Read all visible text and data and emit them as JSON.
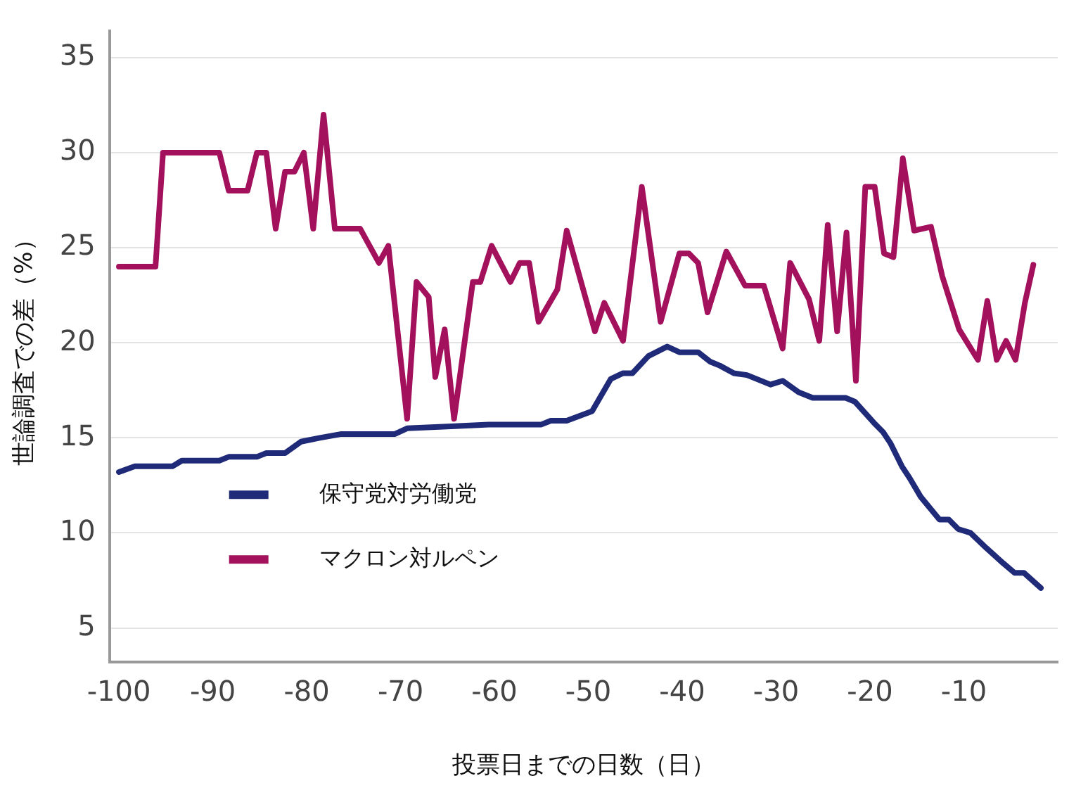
{
  "chart_data": {
    "type": "line",
    "xlabel": "投票日までの日数（日）",
    "ylabel": "世論調査での差（%）",
    "xlim": [
      -101,
      0
    ],
    "ylim": [
      3.2,
      36.4
    ],
    "xticks": [
      -100,
      -90,
      -80,
      -70,
      -60,
      -50,
      -40,
      -30,
      -20,
      -10
    ],
    "yticks": [
      5,
      10,
      15,
      20,
      25,
      30,
      35
    ],
    "grid": "y",
    "legend": "bottom left",
    "marker": "none",
    "line_style": "solid",
    "series": [
      {
        "name": "保守党対労働党",
        "color": "#1f2a78",
        "x": [
          -100,
          -98.3,
          -94.3,
          -93.3,
          -89.3,
          -88.3,
          -85.3,
          -84.3,
          -82.3,
          -80.6,
          -78.6,
          -76.3,
          -70.6,
          -69.3,
          -64.6,
          -60.6,
          -55,
          -54,
          -52.3,
          -49.6,
          -47.6,
          -46.3,
          -45.3,
          -43.6,
          -41.6,
          -40.3,
          -38.3,
          -37,
          -36,
          -34.5,
          -33.1,
          -30.6,
          -29.3,
          -27.6,
          -26.1,
          -22.6,
          -21.6,
          -19.6,
          -18.6,
          -17.8,
          -16.6,
          -15.8,
          -14.6,
          -12.6,
          -11.6,
          -10.6,
          -9.3,
          -7.6,
          -5.8,
          -4.6,
          -3.6,
          -1.8
        ],
        "values": [
          13.2,
          13.5,
          13.5,
          13.8,
          13.8,
          14.0,
          14.0,
          14.2,
          14.2,
          14.8,
          15.0,
          15.2,
          15.2,
          15.5,
          15.6,
          15.7,
          15.7,
          15.9,
          15.9,
          16.4,
          18.1,
          18.4,
          18.4,
          19.3,
          19.8,
          19.5,
          19.5,
          19.0,
          18.8,
          18.4,
          18.3,
          17.8,
          18.0,
          17.4,
          17.1,
          17.1,
          16.9,
          15.8,
          15.3,
          14.7,
          13.5,
          12.9,
          11.9,
          10.7,
          10.7,
          10.2,
          10.0,
          9.2,
          8.4,
          7.9,
          7.9,
          7.1
        ]
      },
      {
        "name": "マクロン対ルペン",
        "color": "#a3105c",
        "x": [
          -100,
          -96.1,
          -95.3,
          -89.3,
          -88.3,
          -86.3,
          -85.3,
          -84.3,
          -83.3,
          -82.3,
          -81.3,
          -80.3,
          -79.3,
          -78.2,
          -77,
          -74.3,
          -72.3,
          -71.3,
          -69.3,
          -68.3,
          -67,
          -66.3,
          -65.3,
          -64.3,
          -62.3,
          -61.5,
          -60.3,
          -58.3,
          -57.3,
          -56.3,
          -55.3,
          -53.3,
          -52.3,
          -49.3,
          -48.3,
          -46.3,
          -44.3,
          -42.3,
          -40.3,
          -39.3,
          -38.3,
          -37.3,
          -35.3,
          -33.3,
          -31.3,
          -29.3,
          -28.5,
          -26.5,
          -25.4,
          -24.5,
          -23.5,
          -22.5,
          -21.5,
          -20.5,
          -19.5,
          -18.5,
          -17.5,
          -16.5,
          -15.3,
          -13.5,
          -12.3,
          -10.5,
          -8.5,
          -7.5,
          -6.5,
          -5.5,
          -4.5,
          -3.5,
          -2.6
        ],
        "values": [
          24,
          24,
          30,
          30,
          28,
          28,
          30,
          30,
          26,
          29,
          29,
          30,
          26,
          32,
          26,
          26,
          24.2,
          25.1,
          16,
          23.2,
          22.4,
          18.2,
          20.7,
          16,
          23.2,
          23.2,
          25.1,
          23.2,
          24.2,
          24.2,
          21.1,
          22.8,
          25.9,
          20.6,
          22.1,
          20.1,
          28.2,
          21.1,
          24.7,
          24.7,
          24.2,
          21.6,
          24.8,
          23,
          23,
          19.7,
          24.2,
          22.3,
          20.1,
          26.2,
          20.6,
          25.8,
          18,
          28.2,
          28.2,
          24.7,
          24.5,
          29.7,
          25.9,
          26.1,
          23.5,
          20.7,
          19.1,
          22.2,
          19.1,
          20.1,
          19.1,
          22.1,
          24.1
        ]
      }
    ]
  }
}
